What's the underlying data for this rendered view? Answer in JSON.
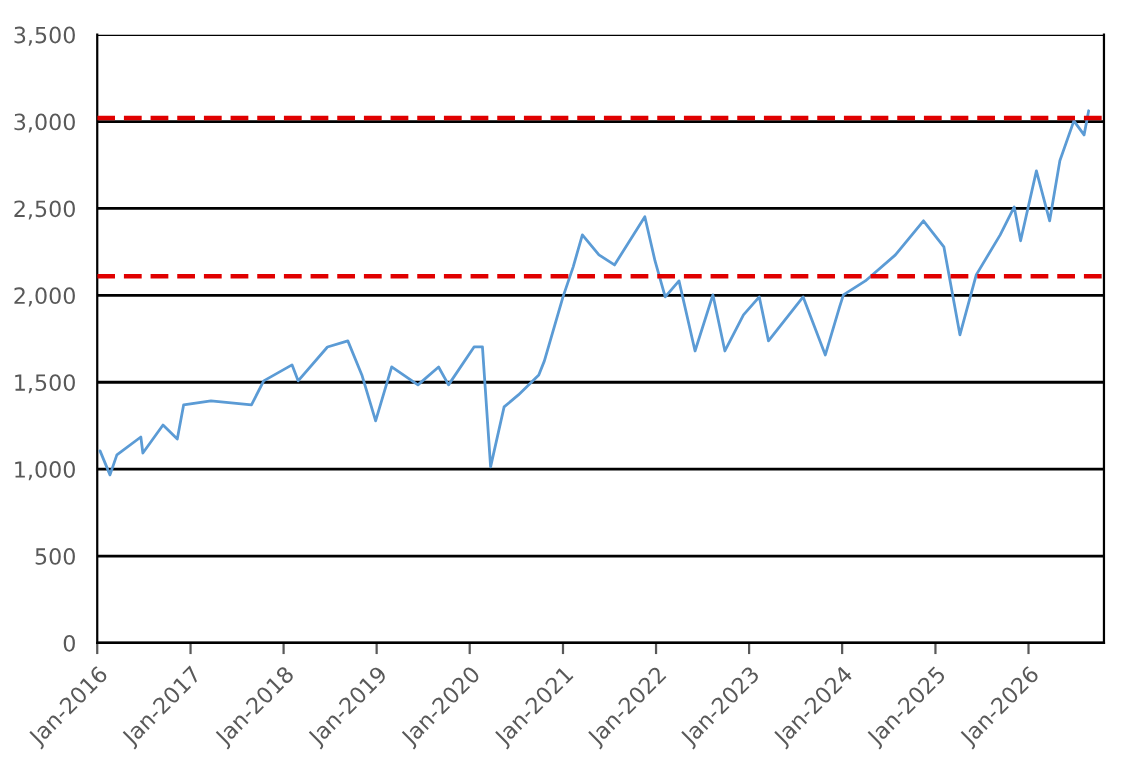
{
  "chart_data": {
    "type": "line",
    "x": [
      "2016-01-12",
      "2016-02-20",
      "2016-03-18",
      "2016-06-20",
      "2016-06-28",
      "2016-09-15",
      "2016-11-10",
      "2016-12-05",
      "2017-03-22",
      "2017-08-28",
      "2017-10-15",
      "2018-02-03",
      "2018-02-27",
      "2018-06-22",
      "2018-09-10",
      "2018-11-04",
      "2018-12-28",
      "2019-03-01",
      "2019-06-12",
      "2019-09-01",
      "2019-10-10",
      "2020-01-18",
      "2020-02-20",
      "2020-03-23",
      "2020-05-15",
      "2020-07-10",
      "2020-09-28",
      "2020-10-20",
      "2021-01-01",
      "2021-02-10",
      "2021-03-18",
      "2021-05-22",
      "2021-07-22",
      "2021-11-18",
      "2021-12-28",
      "2022-02-06",
      "2022-04-01",
      "2022-06-03",
      "2022-08-12",
      "2022-09-28",
      "2022-12-10",
      "2023-02-10",
      "2023-03-18",
      "2023-08-01",
      "2023-10-27",
      "2023-12-22",
      "2024-01-06",
      "2024-04-01",
      "2024-07-28",
      "2024-11-15",
      "2025-02-03",
      "2025-04-07",
      "2025-06-10",
      "2025-09-12",
      "2025-11-06",
      "2025-12-01",
      "2026-02-01",
      "2026-03-25",
      "2026-05-04",
      "2026-06-28",
      "2026-08-07",
      "2026-08-25"
    ],
    "series": [
      {
        "color": "#5b9bd5",
        "values": [
          1105,
          967,
          1082,
          1185,
          1093,
          1254,
          1174,
          1370,
          1393,
          1370,
          1508,
          1600,
          1508,
          1703,
          1738,
          1542,
          1278,
          1588,
          1485,
          1588,
          1485,
          1703,
          1703,
          1013,
          1358,
          1427,
          1542,
          1623,
          1991,
          2164,
          2348,
          2233,
          2175,
          2452,
          2198,
          1991,
          2083,
          1680,
          2003,
          1680,
          1888,
          1991,
          1738,
          1991,
          1657,
          1934,
          2003,
          2083,
          2233,
          2429,
          2279,
          1773,
          2118,
          2348,
          2509,
          2314,
          2716,
          2429,
          2774,
          3004,
          2923,
          3062
        ]
      }
    ],
    "xlim": [
      "2016-01-01",
      "2026-10-24"
    ],
    "xticks": [
      {
        "value": "2016-01-01",
        "label": "Jan-2016"
      },
      {
        "value": "2017-01-01",
        "label": "Jan-2017"
      },
      {
        "value": "2018-01-01",
        "label": "Jan-2018"
      },
      {
        "value": "2019-01-01",
        "label": "Jan-2019"
      },
      {
        "value": "2020-01-01",
        "label": "Jan-2020"
      },
      {
        "value": "2021-01-01",
        "label": "Jan-2021"
      },
      {
        "value": "2022-01-01",
        "label": "Jan-2022"
      },
      {
        "value": "2023-01-01",
        "label": "Jan-2023"
      },
      {
        "value": "2024-01-01",
        "label": "Jan-2024"
      },
      {
        "value": "2025-01-01",
        "label": "Jan-2025"
      },
      {
        "value": "2026-01-01",
        "label": "Jan-2026"
      }
    ],
    "ylim": [
      0,
      3500
    ],
    "yticks": [
      0,
      {
        "value": 500,
        "label": "500"
      },
      {
        "value": 1000,
        "label": "1,000"
      },
      {
        "value": 1500,
        "label": "1,500"
      },
      {
        "value": 2000,
        "label": "2,000"
      },
      {
        "value": 2500,
        "label": "2,500"
      },
      {
        "value": 3000,
        "label": "3,000"
      },
      {
        "value": 3500,
        "label": "3,500"
      }
    ],
    "grid": "y",
    "ref_lines": [
      {
        "axis": "y",
        "value": 3020,
        "color": "#e00000",
        "line_style": "dashed"
      },
      {
        "axis": "y",
        "value": 2110,
        "color": "#e00000",
        "line_style": "dashed"
      }
    ]
  }
}
